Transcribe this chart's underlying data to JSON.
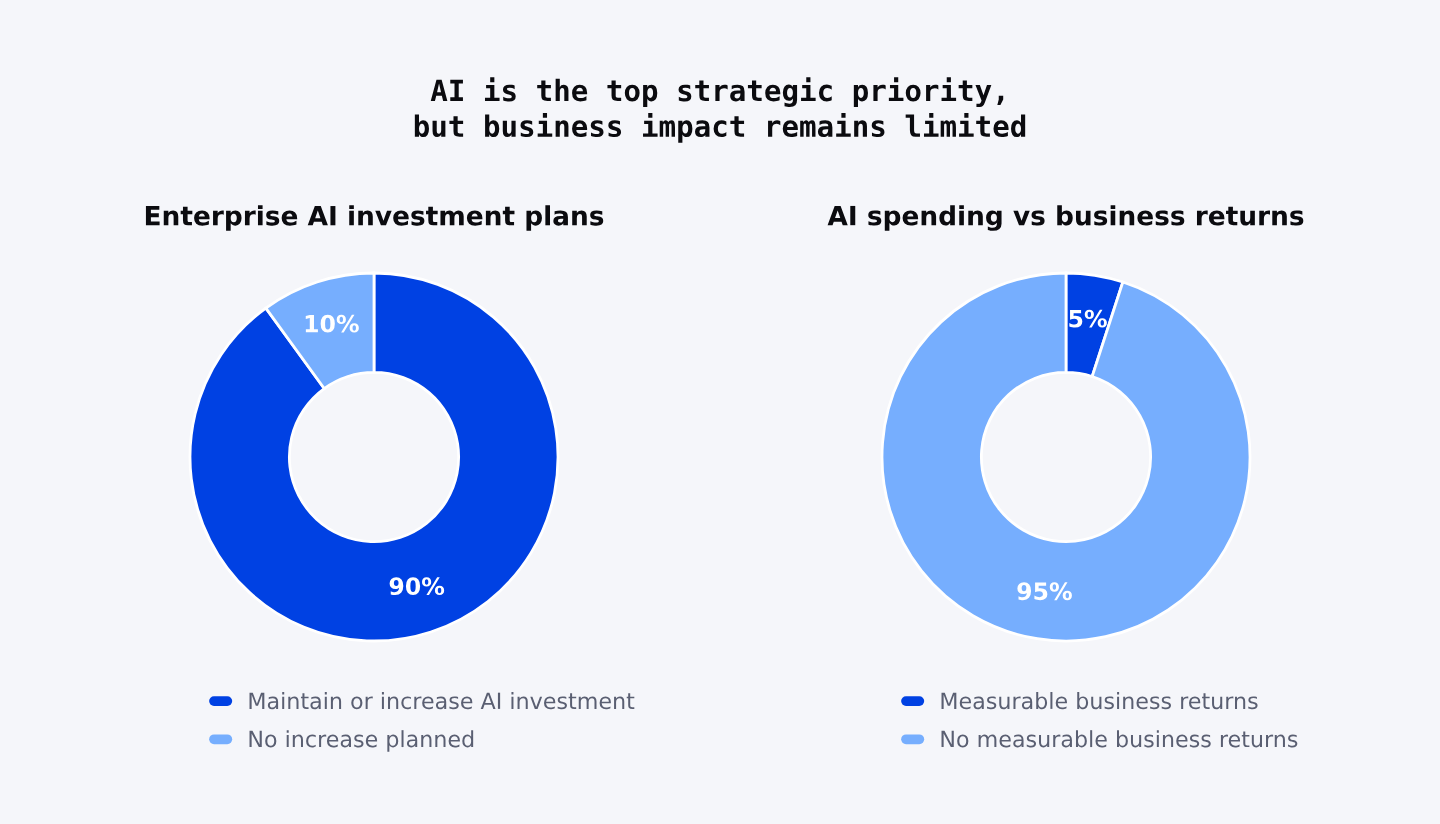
{
  "chart_data": [
    {
      "type": "other",
      "title": "AI is the top strategic priority,\nbut business impact remains limited"
    },
    {
      "type": "donut",
      "title": "Enterprise AI investment plans",
      "categories": [
        "Maintain or increase AI investment",
        "No increase planned"
      ],
      "values": [
        90,
        10
      ],
      "colors": [
        "#0041e3",
        "#76aefe"
      ],
      "value_labels": [
        "90%",
        "10%"
      ],
      "legend": "bottom"
    },
    {
      "type": "donut",
      "title": "AI spending vs business returns",
      "categories": [
        "Measurable business returns",
        "No measurable business returns"
      ],
      "values": [
        5,
        95
      ],
      "colors": [
        "#0041e3",
        "#76aefe"
      ],
      "value_labels": [
        "5%",
        "95%"
      ],
      "legend": "bottom"
    }
  ]
}
